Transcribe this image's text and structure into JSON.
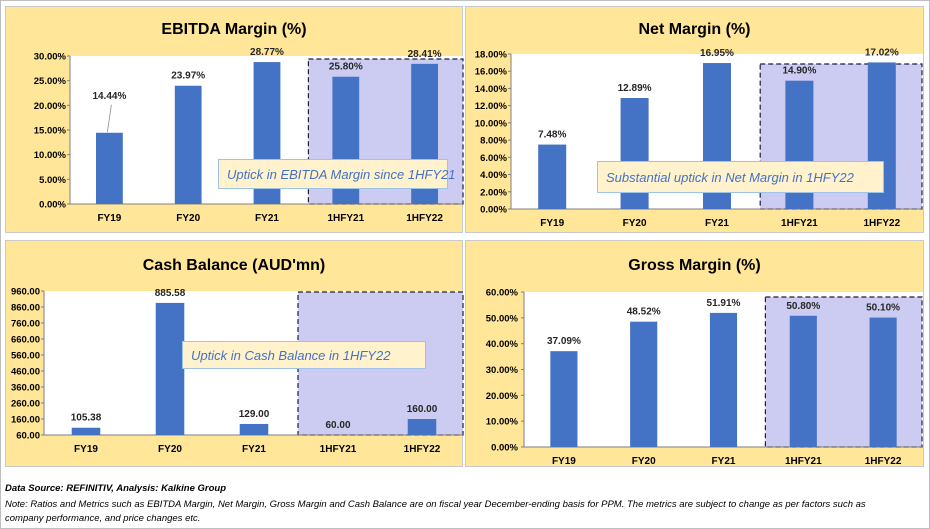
{
  "chart_data": [
    {
      "id": "ebitda",
      "type": "bar",
      "title": "EBITDA Margin (%)",
      "categories": [
        "FY19",
        "FY20",
        "FY21",
        "1HFY21",
        "1HFY22"
      ],
      "values": [
        14.44,
        23.97,
        28.77,
        25.8,
        28.41
      ],
      "data_labels": [
        "14.44%",
        "23.97%",
        "28.77%",
        "25.80%",
        "28.41%"
      ],
      "y_ticks": [
        "0.00%",
        "5.00%",
        "10.00%",
        "15.00%",
        "20.00%",
        "25.00%",
        "30.00%"
      ],
      "ylim": [
        0,
        30
      ],
      "callout": "Uptick in EBITDA Margin since 1HFY21",
      "highlight": [
        "1HFY21",
        "1HFY22"
      ]
    },
    {
      "id": "net",
      "type": "bar",
      "title": "Net Margin (%)",
      "categories": [
        "FY19",
        "FY20",
        "FY21",
        "1HFY21",
        "1HFY22"
      ],
      "values": [
        7.48,
        12.89,
        16.95,
        14.9,
        17.02
      ],
      "data_labels": [
        "7.48%",
        "12.89%",
        "16.95%",
        "14.90%",
        "17.02%"
      ],
      "y_ticks": [
        "0.00%",
        "2.00%",
        "4.00%",
        "6.00%",
        "8.00%",
        "10.00%",
        "12.00%",
        "14.00%",
        "16.00%",
        "18.00%"
      ],
      "ylim": [
        0,
        18
      ],
      "callout": "Substantial uptick in Net Margin in 1HFY22",
      "highlight": [
        "1HFY21",
        "1HFY22"
      ]
    },
    {
      "id": "cash",
      "type": "bar",
      "title": "Cash Balance (AUD'mn)",
      "categories": [
        "FY19",
        "FY20",
        "FY21",
        "1HFY21",
        "1HFY22"
      ],
      "values": [
        105.38,
        885.58,
        129.0,
        60.0,
        160.0
      ],
      "data_labels": [
        "105.38",
        "885.58",
        "129.00",
        "60.00",
        "160.00"
      ],
      "y_ticks": [
        "60.00",
        "160.00",
        "260.00",
        "360.00",
        "460.00",
        "560.00",
        "660.00",
        "760.00",
        "860.00",
        "960.00"
      ],
      "ylim": [
        60,
        960
      ],
      "callout": "Uptick in Cash Balance in 1HFY22",
      "highlight": [
        "1HFY21",
        "1HFY22"
      ]
    },
    {
      "id": "gross",
      "type": "bar",
      "title": "Gross Margin (%)",
      "categories": [
        "FY19",
        "FY20",
        "FY21",
        "1HFY21",
        "1HFY22"
      ],
      "values": [
        37.09,
        48.52,
        51.91,
        50.8,
        50.1
      ],
      "data_labels": [
        "37.09%",
        "48.52%",
        "51.91%",
        "50.80%",
        "50.10%"
      ],
      "y_ticks": [
        "0.00%",
        "10.00%",
        "20.00%",
        "30.00%",
        "40.00%",
        "50.00%",
        "60.00%"
      ],
      "ylim": [
        0,
        60
      ],
      "callout": "",
      "highlight": [
        "1HFY21",
        "1HFY22"
      ]
    }
  ],
  "colors": {
    "bar": "#4472c4",
    "highlight_fill": "#ccccf2",
    "panel_bg": "#ffe699",
    "callout_bg": "#fff2cc",
    "callout_text": "#4472c4"
  },
  "footer": {
    "source_label": "Data Source: REFINITIV, Analysis: Kalkine Group",
    "note_line1": "Note: Ratios and Metrics such as EBITDA Margin, Net Margin, Gross Margin and Cash Balance are on fiscal year December-ending basis for PPM. The metrics are subject to change as per factors such as",
    "note_line2": "company performance, and price changes etc."
  }
}
